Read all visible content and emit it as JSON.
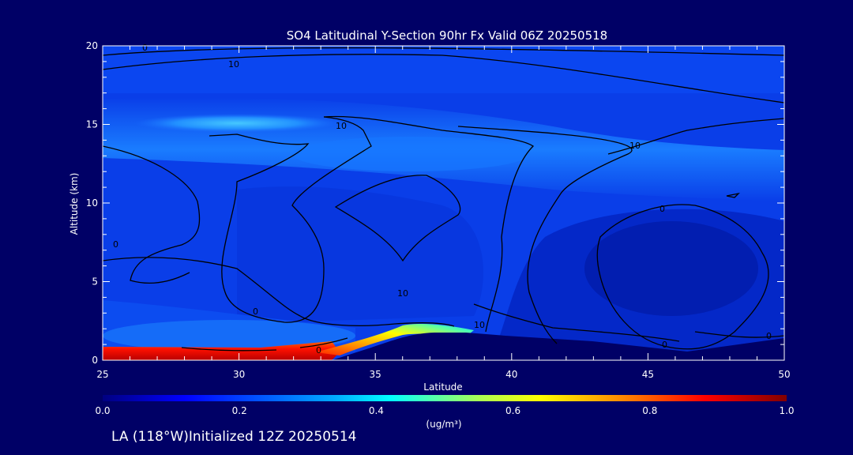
{
  "chart_data": {
    "type": "heatmap",
    "title": "SO4 Latitudinal Y-Section 90hr  Fx Valid 06Z 20250518",
    "xlabel": "Latitude",
    "ylabel": "Altitude (km)",
    "xlim": [
      25,
      50
    ],
    "ylim": [
      0,
      20
    ],
    "x_ticks": [
      "25",
      "30",
      "35",
      "40",
      "45",
      "50"
    ],
    "y_ticks": [
      "0",
      "5",
      "10",
      "15",
      "20"
    ],
    "colorbar": {
      "ticks": [
        "0.0",
        "0.2",
        "0.4",
        "0.6",
        "0.8",
        "1.0"
      ],
      "range": [
        0.0,
        1.0
      ],
      "unit_label": "(ug/m³)"
    },
    "contour_labels": [
      "0",
      "10",
      "10",
      "10",
      "0",
      "0",
      "0",
      "0",
      "10",
      "10",
      "0",
      "0"
    ],
    "concentration_regions": [
      {
        "name": "upper-band",
        "level": 0.28,
        "lat_range": [
          25,
          40
        ],
        "alt_range": [
          13.5,
          16.5
        ]
      },
      {
        "name": "surface-plume",
        "level": 0.92,
        "lat_range": [
          25,
          33
        ],
        "alt_range": [
          0,
          0.8
        ]
      },
      {
        "name": "slope-plume",
        "level": 0.55,
        "lat_range": [
          33,
          38
        ],
        "alt_range": [
          0.5,
          2.0
        ]
      },
      {
        "name": "eastern-low",
        "level": 0.05,
        "lat_range": [
          43,
          50
        ],
        "alt_range": [
          3,
          9
        ]
      }
    ]
  },
  "footer": {
    "text": "LA (118°W)Initialized 12Z 20250514"
  }
}
